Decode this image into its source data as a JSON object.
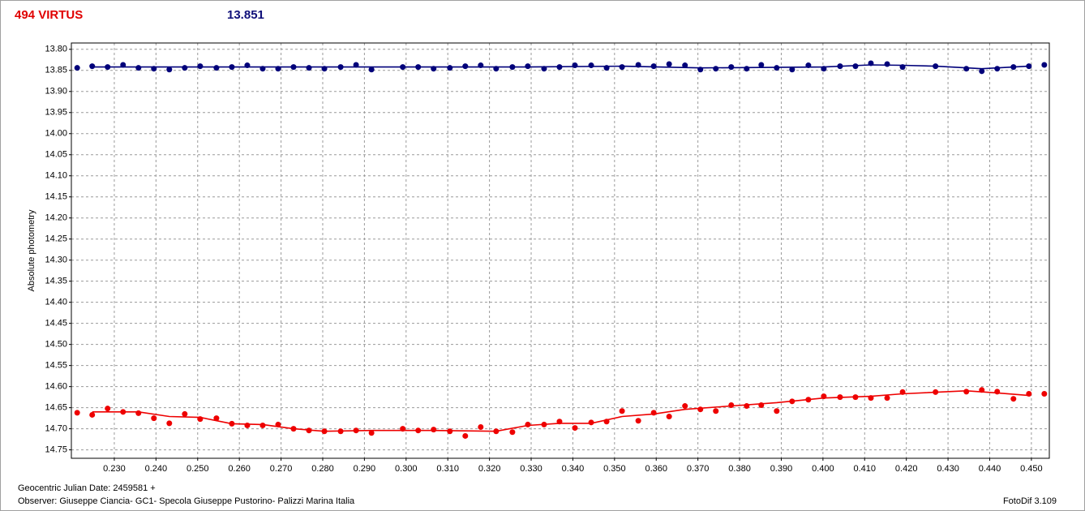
{
  "chart_data": {
    "type": "scatter",
    "title": "494 VIRTUS",
    "subtitle": "13.851",
    "ylabel": "Absolute photometry",
    "xlabel": "Geocentric Julian Date: 2459581 +",
    "observer": "Observer: Giuseppe Ciancia- GC1- Specola Giuseppe Pustorino- Palizzi Marina Italia",
    "credit": "FotoDif 3.109",
    "grid": true,
    "xlim": [
      0.2197,
      0.4543
    ],
    "ylim": [
      14.77,
      13.785
    ],
    "xticks": [
      {
        "value": 0.23,
        "label": "0.230"
      },
      {
        "value": 0.24,
        "label": "0.240"
      },
      {
        "value": 0.25,
        "label": "0.250"
      },
      {
        "value": 0.26,
        "label": "0.260"
      },
      {
        "value": 0.27,
        "label": "0.270"
      },
      {
        "value": 0.28,
        "label": "0.280"
      },
      {
        "value": 0.29,
        "label": "0.290"
      },
      {
        "value": 0.3,
        "label": "0.300"
      },
      {
        "value": 0.31,
        "label": "0.310"
      },
      {
        "value": 0.32,
        "label": "0.320"
      },
      {
        "value": 0.33,
        "label": "0.330"
      },
      {
        "value": 0.34,
        "label": "0.340"
      },
      {
        "value": 0.35,
        "label": "0.350"
      },
      {
        "value": 0.36,
        "label": "0.360"
      },
      {
        "value": 0.37,
        "label": "0.370"
      },
      {
        "value": 0.38,
        "label": "0.380"
      },
      {
        "value": 0.39,
        "label": "0.390"
      },
      {
        "value": 0.4,
        "label": "0.400"
      },
      {
        "value": 0.41,
        "label": "0.410"
      },
      {
        "value": 0.42,
        "label": "0.420"
      },
      {
        "value": 0.43,
        "label": "0.430"
      },
      {
        "value": 0.44,
        "label": "0.440"
      },
      {
        "value": 0.45,
        "label": "0.450"
      }
    ],
    "yticks": [
      {
        "value": 13.8,
        "label": "13.80"
      },
      13.85,
      {
        "value": 13.9,
        "label": "13.90"
      },
      13.95,
      {
        "value": 14.0,
        "label": "14.00"
      },
      14.05,
      {
        "value": 14.1,
        "label": "14.10"
      },
      14.15,
      {
        "value": 14.2,
        "label": "14.20"
      },
      14.25,
      {
        "value": 14.3,
        "label": "14.30"
      },
      14.35,
      {
        "value": 14.4,
        "label": "14.40"
      },
      14.45,
      {
        "value": 14.5,
        "label": "14.50"
      },
      14.55,
      {
        "value": 14.6,
        "label": "14.60"
      },
      14.65,
      {
        "value": 14.7,
        "label": "14.70"
      },
      14.75
    ],
    "x": [
      0.2211,
      0.2247,
      0.2284,
      0.2321,
      0.2358,
      0.2395,
      0.2432,
      0.2469,
      0.2506,
      0.2545,
      0.2582,
      0.2619,
      0.2656,
      0.2693,
      0.273,
      0.2767,
      0.2804,
      0.2843,
      0.288,
      0.2917,
      0.2992,
      0.3029,
      0.3066,
      0.3105,
      0.3142,
      0.3179,
      0.3216,
      0.3255,
      0.3292,
      0.3331,
      0.3368,
      0.3405,
      0.3444,
      0.3481,
      0.3518,
      0.3557,
      0.3594,
      0.3631,
      0.3669,
      0.3706,
      0.3743,
      0.378,
      0.3817,
      0.3852,
      0.3889,
      0.3926,
      0.3965,
      0.4002,
      0.4041,
      0.4078,
      0.4115,
      0.4154,
      0.4191,
      0.427,
      0.4344,
      0.4381,
      0.4418,
      0.4457,
      0.4494,
      0.4531
    ],
    "series": [
      {
        "color": "#00007a",
        "values": [
          13.844,
          13.84,
          13.842,
          13.837,
          13.844,
          13.846,
          13.848,
          13.844,
          13.84,
          13.844,
          13.842,
          13.838,
          13.846,
          13.846,
          13.842,
          13.844,
          13.846,
          13.842,
          13.837,
          13.848,
          13.842,
          13.842,
          13.846,
          13.844,
          13.84,
          13.838,
          13.846,
          13.842,
          13.84,
          13.846,
          13.842,
          13.838,
          13.838,
          13.844,
          13.842,
          13.837,
          13.84,
          13.835,
          13.838,
          13.848,
          13.846,
          13.842,
          13.846,
          13.837,
          13.844,
          13.848,
          13.838,
          13.846,
          13.84,
          13.84,
          13.833,
          13.835,
          13.842,
          13.84,
          13.846,
          13.852,
          13.846,
          13.842,
          13.84,
          13.837
        ]
      },
      {
        "color": "#ee0000",
        "values": [
          14.662,
          14.667,
          14.652,
          14.66,
          14.663,
          14.675,
          14.687,
          14.665,
          14.677,
          14.675,
          14.688,
          14.692,
          14.692,
          14.69,
          14.7,
          14.704,
          14.706,
          14.706,
          14.704,
          14.71,
          14.7,
          14.704,
          14.702,
          14.706,
          14.717,
          14.696,
          14.706,
          14.708,
          14.69,
          14.69,
          14.683,
          14.698,
          14.685,
          14.683,
          14.658,
          14.681,
          14.662,
          14.671,
          14.646,
          14.654,
          14.658,
          14.644,
          14.646,
          14.644,
          14.658,
          14.635,
          14.631,
          14.623,
          14.625,
          14.625,
          14.627,
          14.627,
          14.613,
          14.613,
          14.612,
          14.608,
          14.612,
          14.629,
          14.617,
          14.617
        ]
      }
    ],
    "fits": [
      {
        "color": "#00007a",
        "x": [
          0.2247,
          0.2506,
          0.2917,
          0.3292,
          0.3518,
          0.3706,
          0.4002,
          0.4115,
          0.4191,
          0.427,
          0.4381,
          0.4418,
          0.4494
        ],
        "values": [
          13.842,
          13.842,
          13.842,
          13.842,
          13.84,
          13.844,
          13.842,
          13.837,
          13.838,
          13.84,
          13.846,
          13.844,
          13.84
        ]
      },
      {
        "color": "#ee0000",
        "x": [
          0.2247,
          0.2358,
          0.2432,
          0.2506,
          0.2582,
          0.2656,
          0.273,
          0.2804,
          0.2917,
          0.3066,
          0.3216,
          0.3292,
          0.3368,
          0.3444,
          0.3518,
          0.3594,
          0.3669,
          0.378,
          0.3889,
          0.4002,
          0.4115,
          0.4191,
          0.4344,
          0.4418,
          0.4494
        ],
        "values": [
          14.66,
          14.66,
          14.671,
          14.673,
          14.688,
          14.69,
          14.7,
          14.706,
          14.704,
          14.704,
          14.706,
          14.692,
          14.687,
          14.687,
          14.671,
          14.665,
          14.654,
          14.646,
          14.638,
          14.627,
          14.623,
          14.617,
          14.61,
          14.615,
          14.621
        ]
      }
    ]
  }
}
